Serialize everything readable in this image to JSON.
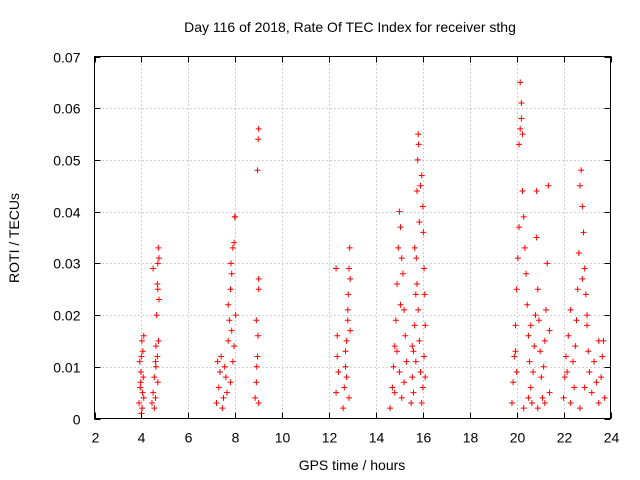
{
  "chart_data": {
    "type": "scatter",
    "title": "Day 116 of 2018, Rate Of TEC Index for receiver sthg",
    "xlabel": "GPS time / hours",
    "ylabel": "ROTI / TECUs",
    "xlim": [
      2,
      24
    ],
    "ylim": [
      0,
      0.07
    ],
    "xticks": [
      2,
      4,
      6,
      8,
      10,
      12,
      14,
      16,
      18,
      20,
      22,
      24
    ],
    "xtick_labels": [
      "2",
      "4",
      "6",
      "8",
      "10",
      "12",
      "14",
      "16",
      "18",
      "20",
      "22",
      "24"
    ],
    "yticks": [
      0,
      0.01,
      0.02,
      0.03,
      0.04,
      0.05,
      0.06,
      0.07
    ],
    "ytick_labels": [
      "0",
      "0.01",
      "0.02",
      "0.03",
      "0.04",
      "0.05",
      "0.06",
      "0.07"
    ],
    "grid": true,
    "marker": "+",
    "color": "#ff0000",
    "series": [
      {
        "name": "ROTI",
        "points": [
          [
            3.9,
            0.003
          ],
          [
            3.95,
            0.006
          ],
          [
            3.98,
            0.009
          ],
          [
            4.0,
            0.012
          ],
          [
            4.02,
            0.015
          ],
          [
            4.05,
            0.005
          ],
          [
            4.08,
            0.008
          ],
          [
            4.1,
            0.004
          ],
          [
            3.93,
            0.011
          ],
          [
            4.03,
            0.002
          ],
          [
            4.06,
            0.013
          ],
          [
            3.97,
            0.007
          ],
          [
            4.1,
            0.016
          ],
          [
            4.0,
            0.001
          ],
          [
            4.45,
            0.003
          ],
          [
            4.5,
            0.005
          ],
          [
            4.55,
            0.008
          ],
          [
            4.6,
            0.011
          ],
          [
            4.62,
            0.014
          ],
          [
            4.65,
            0.02
          ],
          [
            4.68,
            0.026
          ],
          [
            4.7,
            0.03
          ],
          [
            4.72,
            0.033
          ],
          [
            4.75,
            0.031
          ],
          [
            4.7,
            0.025
          ],
          [
            4.75,
            0.023
          ],
          [
            4.5,
            0.029
          ],
          [
            4.6,
            0.004
          ],
          [
            4.7,
            0.007
          ],
          [
            4.68,
            0.012
          ],
          [
            4.62,
            0.01
          ],
          [
            4.55,
            0.002
          ],
          [
            4.73,
            0.015
          ],
          [
            7.2,
            0.003
          ],
          [
            7.3,
            0.006
          ],
          [
            7.35,
            0.009
          ],
          [
            7.4,
            0.012
          ],
          [
            7.5,
            0.004
          ],
          [
            7.6,
            0.008
          ],
          [
            7.7,
            0.015
          ],
          [
            7.75,
            0.019
          ],
          [
            7.8,
            0.025
          ],
          [
            7.82,
            0.03
          ],
          [
            7.85,
            0.028
          ],
          [
            7.9,
            0.033
          ],
          [
            7.95,
            0.034
          ],
          [
            7.98,
            0.039
          ],
          [
            8.0,
            0.039
          ],
          [
            8.02,
            0.02
          ],
          [
            7.9,
            0.011
          ],
          [
            7.8,
            0.007
          ],
          [
            7.65,
            0.005
          ],
          [
            7.55,
            0.01
          ],
          [
            7.45,
            0.002
          ],
          [
            7.85,
            0.017
          ],
          [
            7.95,
            0.014
          ],
          [
            7.7,
            0.022
          ],
          [
            7.25,
            0.011
          ],
          [
            8.85,
            0.004
          ],
          [
            8.9,
            0.007
          ],
          [
            8.92,
            0.01
          ],
          [
            8.95,
            0.012
          ],
          [
            8.97,
            0.016
          ],
          [
            9.0,
            0.025
          ],
          [
            9.0,
            0.027
          ],
          [
            8.95,
            0.048
          ],
          [
            8.98,
            0.054
          ],
          [
            9.0,
            0.056
          ],
          [
            8.9,
            0.019
          ],
          [
            9.0,
            0.003
          ],
          [
            12.3,
            0.029
          ],
          [
            12.3,
            0.005
          ],
          [
            12.35,
            0.012
          ],
          [
            12.35,
            0.016
          ],
          [
            12.4,
            0.009
          ],
          [
            12.6,
            0.002
          ],
          [
            12.65,
            0.006
          ],
          [
            12.7,
            0.01
          ],
          [
            12.75,
            0.015
          ],
          [
            12.8,
            0.019
          ],
          [
            12.82,
            0.024
          ],
          [
            12.85,
            0.029
          ],
          [
            12.88,
            0.033
          ],
          [
            12.9,
            0.027
          ],
          [
            12.8,
            0.021
          ],
          [
            12.7,
            0.013
          ],
          [
            12.85,
            0.004
          ],
          [
            12.75,
            0.008
          ],
          [
            12.9,
            0.017
          ],
          [
            14.6,
            0.002
          ],
          [
            14.7,
            0.006
          ],
          [
            14.75,
            0.01
          ],
          [
            14.8,
            0.014
          ],
          [
            14.85,
            0.019
          ],
          [
            14.9,
            0.026
          ],
          [
            14.95,
            0.033
          ],
          [
            15.0,
            0.04
          ],
          [
            15.05,
            0.037
          ],
          [
            15.1,
            0.031
          ],
          [
            15.15,
            0.028
          ],
          [
            15.2,
            0.021
          ],
          [
            15.25,
            0.016
          ],
          [
            15.3,
            0.011
          ],
          [
            15.2,
            0.007
          ],
          [
            15.1,
            0.004
          ],
          [
            15.0,
            0.009
          ],
          [
            14.9,
            0.013
          ],
          [
            15.05,
            0.022
          ],
          [
            14.8,
            0.005
          ],
          [
            15.5,
            0.003
          ],
          [
            15.55,
            0.008
          ],
          [
            15.6,
            0.013
          ],
          [
            15.65,
            0.018
          ],
          [
            15.7,
            0.024
          ],
          [
            15.72,
            0.031
          ],
          [
            15.75,
            0.044
          ],
          [
            15.78,
            0.05
          ],
          [
            15.8,
            0.055
          ],
          [
            15.82,
            0.053
          ],
          [
            15.85,
            0.038
          ],
          [
            15.9,
            0.045
          ],
          [
            15.95,
            0.047
          ],
          [
            16.0,
            0.041
          ],
          [
            16.02,
            0.036
          ],
          [
            16.05,
            0.029
          ],
          [
            16.08,
            0.024
          ],
          [
            16.1,
            0.018
          ],
          [
            16.05,
            0.012
          ],
          [
            16.0,
            0.006
          ],
          [
            15.95,
            0.003
          ],
          [
            15.9,
            0.009
          ],
          [
            15.85,
            0.015
          ],
          [
            15.8,
            0.021
          ],
          [
            15.7,
            0.011
          ],
          [
            15.6,
            0.005
          ],
          [
            16.1,
            0.008
          ],
          [
            15.75,
            0.026
          ],
          [
            15.65,
            0.033
          ],
          [
            15.55,
            0.014
          ],
          [
            19.8,
            0.003
          ],
          [
            19.85,
            0.007
          ],
          [
            19.9,
            0.012
          ],
          [
            19.95,
            0.018
          ],
          [
            20.0,
            0.025
          ],
          [
            20.05,
            0.031
          ],
          [
            20.1,
            0.037
          ],
          [
            20.1,
            0.053
          ],
          [
            20.15,
            0.056
          ],
          [
            20.15,
            0.065
          ],
          [
            20.2,
            0.061
          ],
          [
            20.2,
            0.058
          ],
          [
            20.25,
            0.055
          ],
          [
            20.25,
            0.044
          ],
          [
            20.3,
            0.039
          ],
          [
            20.35,
            0.033
          ],
          [
            20.4,
            0.028
          ],
          [
            20.45,
            0.022
          ],
          [
            20.5,
            0.016
          ],
          [
            20.55,
            0.011
          ],
          [
            20.6,
            0.006
          ],
          [
            20.65,
            0.003
          ],
          [
            20.7,
            0.009
          ],
          [
            20.75,
            0.014
          ],
          [
            20.8,
            0.02
          ],
          [
            20.85,
            0.044
          ],
          [
            20.85,
            0.035
          ],
          [
            20.9,
            0.025
          ],
          [
            20.95,
            0.019
          ],
          [
            21.0,
            0.013
          ],
          [
            21.05,
            0.008
          ],
          [
            21.1,
            0.004
          ],
          [
            21.15,
            0.01
          ],
          [
            21.2,
            0.015
          ],
          [
            21.25,
            0.021
          ],
          [
            21.3,
            0.03
          ],
          [
            21.35,
            0.045
          ],
          [
            21.4,
            0.017
          ],
          [
            21.4,
            0.005
          ],
          [
            20.3,
            0.002
          ],
          [
            20.0,
            0.009
          ],
          [
            20.5,
            0.004
          ],
          [
            20.9,
            0.002
          ],
          [
            21.2,
            0.003
          ],
          [
            19.95,
            0.013
          ],
          [
            20.6,
            0.018
          ],
          [
            22.0,
            0.004
          ],
          [
            22.05,
            0.008
          ],
          [
            22.1,
            0.012
          ],
          [
            22.2,
            0.016
          ],
          [
            22.3,
            0.021
          ],
          [
            22.4,
            0.011
          ],
          [
            22.45,
            0.006
          ],
          [
            22.5,
            0.014
          ],
          [
            22.55,
            0.019
          ],
          [
            22.6,
            0.025
          ],
          [
            22.65,
            0.032
          ],
          [
            22.7,
            0.045
          ],
          [
            22.75,
            0.048
          ],
          [
            22.8,
            0.041
          ],
          [
            22.85,
            0.036
          ],
          [
            22.9,
            0.029
          ],
          [
            22.95,
            0.024
          ],
          [
            23.0,
            0.018
          ],
          [
            23.05,
            0.013
          ],
          [
            23.1,
            0.009
          ],
          [
            23.2,
            0.005
          ],
          [
            23.3,
            0.011
          ],
          [
            23.4,
            0.007
          ],
          [
            23.5,
            0.003
          ],
          [
            23.6,
            0.008
          ],
          [
            23.65,
            0.012
          ],
          [
            23.7,
            0.015
          ],
          [
            23.75,
            0.004
          ],
          [
            22.7,
            0.002
          ],
          [
            22.9,
            0.006
          ],
          [
            22.3,
            0.003
          ],
          [
            23.0,
            0.02
          ],
          [
            22.8,
            0.027
          ],
          [
            23.5,
            0.015
          ],
          [
            22.15,
            0.009
          ]
        ]
      }
    ]
  }
}
